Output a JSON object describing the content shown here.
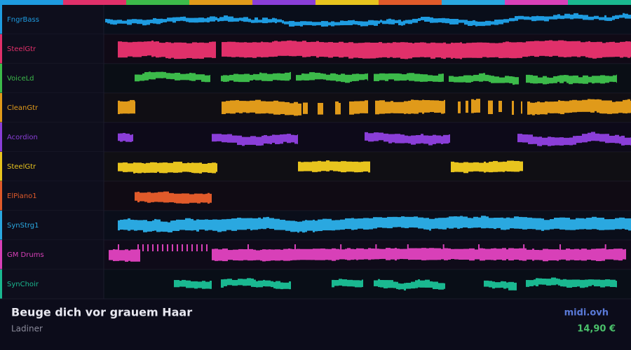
{
  "tracks": [
    {
      "name": "FngrBass",
      "color": "#1e9be0"
    },
    {
      "name": "SteelGtr",
      "color": "#e0306a"
    },
    {
      "name": "VoiceLd",
      "color": "#3cba4a"
    },
    {
      "name": "CleanGtr",
      "color": "#e09a1a"
    },
    {
      "name": "Acordion",
      "color": "#8a3ed8"
    },
    {
      "name": "SteelGtr",
      "color": "#e8c41e"
    },
    {
      "name": "ElPiano1",
      "color": "#e05a2a"
    },
    {
      "name": "SynStrg1",
      "color": "#2aa8e0"
    },
    {
      "name": "GM Drums",
      "color": "#d840b8"
    },
    {
      "name": "SynChoir",
      "color": "#1ab890"
    }
  ],
  "footer": {
    "title": "Beuge dich vor grauem Haar",
    "artist": "Ladiner",
    "site": "midi.ovh",
    "price": "14,90 €"
  }
}
